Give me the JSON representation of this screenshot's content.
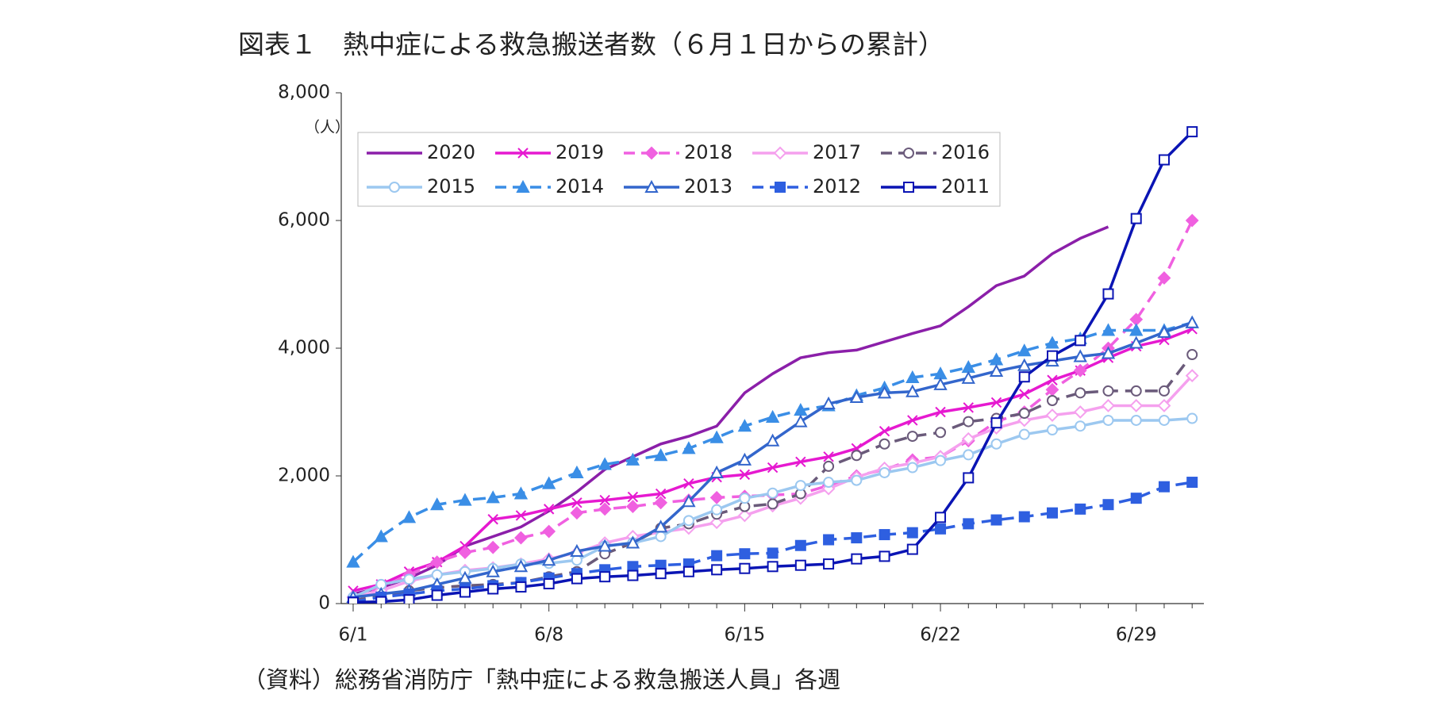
{
  "chart_data": {
    "type": "line",
    "title": "図表１　熱中症による救急搬送者数（６月１日からの累計）",
    "y_unit": "（人）",
    "source": "（資料）総務省消防庁「熱中症による救急搬送人員」各週",
    "categories": [
      "6/1",
      null,
      null,
      null,
      null,
      null,
      null,
      "6/8",
      null,
      null,
      null,
      null,
      null,
      null,
      "6/15",
      null,
      null,
      null,
      null,
      null,
      null,
      "6/22",
      null,
      null,
      null,
      null,
      null,
      null,
      "6/29",
      null,
      null
    ],
    "ylim": [
      0,
      8000
    ],
    "yticks": [
      0,
      {
        "value": 2000,
        "label": "2,000"
      },
      {
        "value": 4000,
        "label": "4,000"
      },
      {
        "value": 6000,
        "label": "6,000"
      },
      {
        "value": 8000,
        "label": "8,000"
      }
    ],
    "legend": "top-left",
    "series": [
      {
        "name": "2020",
        "color": "#8b1fa9",
        "dash": false,
        "marker": "none",
        "values": [
          150,
          250,
          400,
          600,
          900,
          1050,
          1200,
          1450,
          1750,
          2100,
          2300,
          2500,
          2620,
          2780,
          3300,
          3600,
          3850,
          3930,
          3970,
          4100,
          4230,
          4350,
          4650,
          4980,
          5130,
          5480,
          5720,
          5900,
          null,
          null,
          null
        ]
      },
      {
        "name": "2019",
        "color": "#e619d0",
        "dash": false,
        "marker": "x",
        "values": [
          200,
          300,
          500,
          650,
          900,
          1320,
          1380,
          1480,
          1580,
          1620,
          1670,
          1720,
          1880,
          1980,
          2020,
          2130,
          2220,
          2300,
          2430,
          2700,
          2870,
          3000,
          3070,
          3150,
          3280,
          3500,
          3650,
          3850,
          4030,
          4130,
          4300
        ]
      },
      {
        "name": "2018",
        "color": "#f060e0",
        "dash": true,
        "marker": "diamond",
        "values": [
          100,
          250,
          450,
          650,
          800,
          880,
          1030,
          1130,
          1420,
          1480,
          1520,
          1580,
          1620,
          1660,
          1680,
          1700,
          1720,
          1850,
          2000,
          2100,
          2250,
          2300,
          2550,
          2850,
          3000,
          3350,
          3650,
          4000,
          4450,
          5100,
          6000
        ]
      },
      {
        "name": "2017",
        "color": "#f5a0ee",
        "dash": false,
        "marker": "diamond-open",
        "values": [
          100,
          200,
          350,
          450,
          520,
          560,
          620,
          700,
          800,
          950,
          1050,
          1120,
          1180,
          1270,
          1380,
          1530,
          1650,
          1800,
          1980,
          2120,
          2200,
          2300,
          2580,
          2750,
          2870,
          2950,
          3000,
          3100,
          3100,
          3100,
          3570
        ]
      },
      {
        "name": "2016",
        "color": "#6a5a7a",
        "dash": true,
        "marker": "circle-open",
        "values": [
          50,
          120,
          200,
          250,
          280,
          300,
          330,
          420,
          500,
          780,
          950,
          1180,
          1250,
          1400,
          1520,
          1560,
          1720,
          2150,
          2320,
          2500,
          2620,
          2680,
          2850,
          2900,
          2980,
          3180,
          3300,
          3330,
          3330,
          3330,
          3900
        ]
      },
      {
        "name": "2015",
        "color": "#9cc8f0",
        "dash": false,
        "marker": "circle-open",
        "values": [
          100,
          300,
          380,
          450,
          500,
          550,
          620,
          630,
          680,
          900,
          950,
          1050,
          1300,
          1470,
          1650,
          1730,
          1850,
          1900,
          1930,
          2050,
          2130,
          2240,
          2330,
          2500,
          2650,
          2720,
          2780,
          2870,
          2870,
          2870,
          2900
        ]
      },
      {
        "name": "2014",
        "color": "#3a8ee6",
        "dash": true,
        "marker": "triangle",
        "values": [
          650,
          1050,
          1350,
          1550,
          1620,
          1660,
          1720,
          1880,
          2050,
          2180,
          2250,
          2320,
          2430,
          2600,
          2780,
          2920,
          3030,
          3100,
          3260,
          3380,
          3540,
          3600,
          3700,
          3820,
          3960,
          4080,
          4150,
          4280,
          4280,
          4280,
          4400
        ]
      },
      {
        "name": "2013",
        "color": "#3366cc",
        "dash": false,
        "marker": "triangle-open",
        "values": [
          100,
          150,
          200,
          300,
          400,
          500,
          580,
          680,
          820,
          900,
          950,
          1200,
          1600,
          2050,
          2250,
          2550,
          2850,
          3130,
          3230,
          3300,
          3320,
          3430,
          3530,
          3640,
          3730,
          3800,
          3870,
          3920,
          4080,
          4250,
          4400
        ]
      },
      {
        "name": "2012",
        "color": "#2e5fe0",
        "dash": true,
        "marker": "square",
        "values": [
          30,
          100,
          150,
          200,
          230,
          280,
          330,
          400,
          470,
          530,
          580,
          600,
          620,
          750,
          780,
          790,
          910,
          1000,
          1030,
          1080,
          1110,
          1170,
          1250,
          1310,
          1360,
          1420,
          1480,
          1550,
          1650,
          1830,
          1900
        ]
      },
      {
        "name": "2011",
        "color": "#0a14b4",
        "dash": false,
        "marker": "square-open",
        "values": [
          20,
          30,
          60,
          130,
          180,
          230,
          260,
          310,
          390,
          420,
          440,
          470,
          500,
          530,
          550,
          580,
          600,
          620,
          700,
          740,
          850,
          1350,
          1970,
          2830,
          3550,
          3880,
          4120,
          4850,
          6030,
          6950,
          7390
        ]
      }
    ]
  }
}
